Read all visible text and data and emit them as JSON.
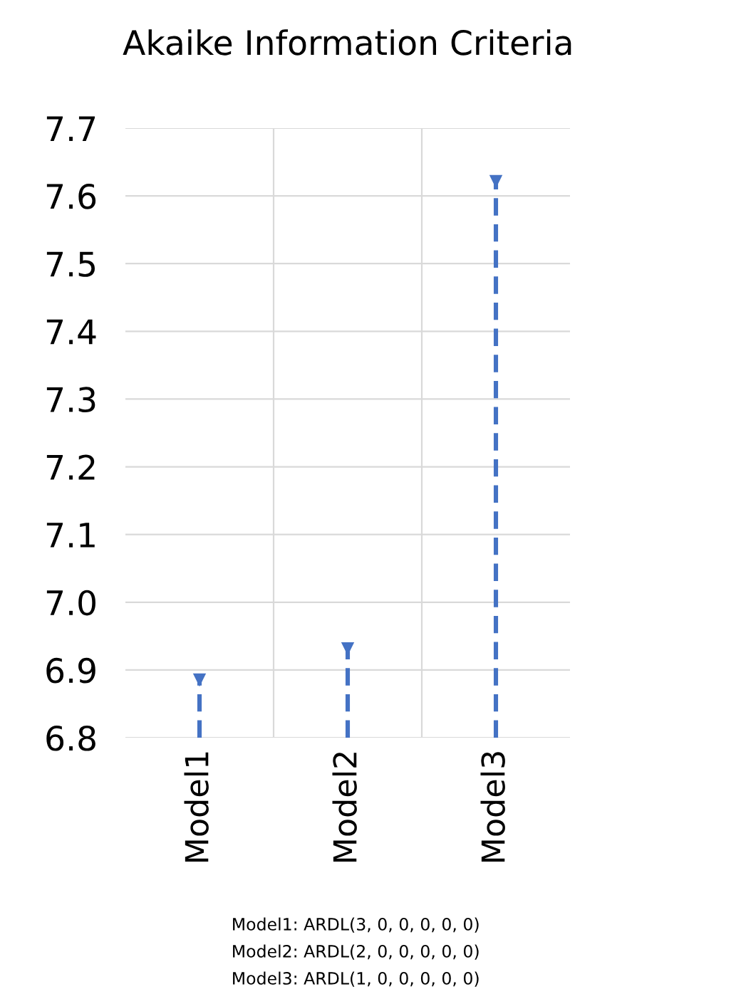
{
  "chart_data": {
    "type": "lollipop",
    "title": "Akaike Information Criteria",
    "categories": [
      "Model1",
      "Model2",
      "Model3"
    ],
    "values": [
      6.886,
      6.932,
      7.622
    ],
    "color": "#4472c4",
    "marker": "triangle",
    "line_style": "dashed",
    "ylim": [
      6.8,
      7.7
    ],
    "yticks": [
      6.8,
      6.9,
      {
        "value": 7.0,
        "label": "7.0"
      },
      7.1,
      7.2,
      7.3,
      7.4,
      7.5,
      7.6,
      7.7
    ],
    "grid": true,
    "annotations": [
      "Model1: ARDL(3, 0, 0, 0, 0, 0)",
      "Model2: ARDL(2, 0, 0, 0, 0, 0)",
      "Model3: ARDL(1, 0, 0, 0, 0, 0)"
    ]
  }
}
